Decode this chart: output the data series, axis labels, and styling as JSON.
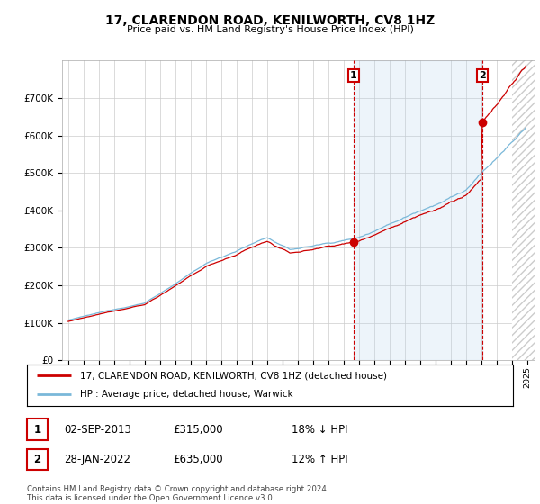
{
  "title": "17, CLARENDON ROAD, KENILWORTH, CV8 1HZ",
  "subtitle": "Price paid vs. HM Land Registry's House Price Index (HPI)",
  "hpi_color": "#7ab8d9",
  "price_color": "#cc0000",
  "shade_color": "#ddeeff",
  "sale1_date": "02-SEP-2013",
  "sale1_price": 315000,
  "sale1_label": "18% ↓ HPI",
  "sale1_year": 2013.67,
  "sale2_date": "28-JAN-2022",
  "sale2_price": 635000,
  "sale2_label": "12% ↑ HPI",
  "sale2_year": 2022.08,
  "legend_property": "17, CLARENDON ROAD, KENILWORTH, CV8 1HZ (detached house)",
  "legend_hpi": "HPI: Average price, detached house, Warwick",
  "footer": "Contains HM Land Registry data © Crown copyright and database right 2024.\nThis data is licensed under the Open Government Licence v3.0.",
  "ylim": [
    0,
    800000
  ],
  "background": "#ffffff",
  "grid_color": "#cccccc"
}
